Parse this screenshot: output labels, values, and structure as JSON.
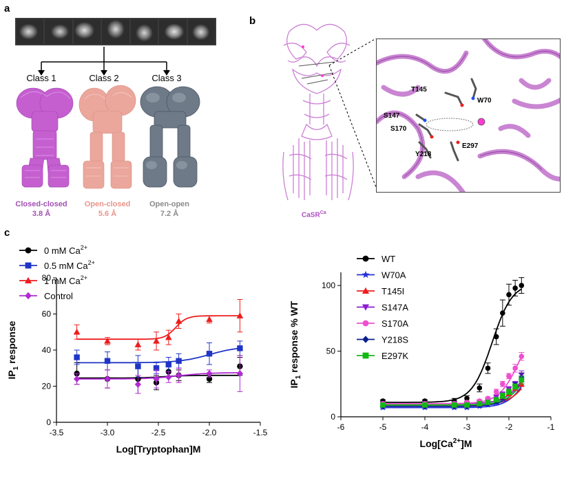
{
  "panel_labels": {
    "a": "a",
    "b": "b",
    "c": "c"
  },
  "panel_a": {
    "classes": [
      {
        "label": "Class 1",
        "state": "Closed-closed",
        "resolution": "3.8 Å",
        "color": "#a24fb4",
        "map_color": "#c55fd0"
      },
      {
        "label": "Class 2",
        "state": "Open-closed",
        "resolution": "5.6 Å",
        "color": "#e8948a",
        "map_color": "#eba79c"
      },
      {
        "label": "Class 3",
        "state": "Open-open",
        "resolution": "7.2 Å",
        "color": "#8a8a8a",
        "map_color": "#6e7a88"
      }
    ]
  },
  "panel_b": {
    "structure_label": "CaSR",
    "structure_label_sup": "Ca",
    "residues": [
      "T145",
      "W70",
      "S147",
      "S170",
      "E297",
      "Y218"
    ]
  },
  "chart_data": [
    {
      "type": "line",
      "xlabel": "Log[Tryptophan]M",
      "ylabel": "IP1 response",
      "xlim": [
        -3.5,
        -1.5
      ],
      "ylim": [
        0,
        80
      ],
      "xticks": [
        "-3.5",
        "-3.0",
        "-2.5",
        "-2.0",
        "-1.5"
      ],
      "yticks": [
        "0",
        "20",
        "40",
        "60",
        "80"
      ],
      "legend_position": "top-left",
      "series": [
        {
          "name": "0 mM Ca",
          "sup": "2+",
          "color": "#000000",
          "marker": "circle",
          "x": [
            -3.3,
            -3.0,
            -2.7,
            -2.52,
            -2.4,
            -2.3,
            -2.0,
            -1.7
          ],
          "y": [
            27,
            24,
            24,
            22,
            28,
            26,
            24,
            31
          ],
          "err": [
            6,
            5,
            8,
            4,
            3,
            3,
            2,
            5
          ],
          "fit": {
            "bottom": 24.5,
            "top": 26,
            "ec50": -2.45,
            "hill": 4
          }
        },
        {
          "name": "0.5 mM Ca",
          "sup": "2+",
          "color": "#1f35c7",
          "marker": "square",
          "x": [
            -3.3,
            -3.0,
            -2.7,
            -2.52,
            -2.4,
            -2.3,
            -2.0,
            -1.7
          ],
          "y": [
            36,
            34,
            31,
            30,
            32,
            34,
            38,
            41
          ],
          "err": [
            4,
            5,
            6,
            3,
            4,
            4,
            6,
            4
          ],
          "fit": {
            "bottom": 33,
            "top": 42,
            "ec50": -2.0,
            "hill": 3
          }
        },
        {
          "name": "1 mM Ca",
          "sup": "2+",
          "color": "#ee1c1c",
          "marker": "triangle",
          "x": [
            -3.3,
            -3.0,
            -2.7,
            -2.52,
            -2.4,
            -2.3,
            -2.0,
            -1.7
          ],
          "y": [
            50,
            45,
            43,
            45,
            47,
            56,
            57,
            59
          ],
          "err": [
            4,
            2,
            3,
            5,
            4,
            4,
            2,
            9
          ],
          "fit": {
            "bottom": 46,
            "top": 59,
            "ec50": -2.33,
            "hill": 8
          }
        },
        {
          "name": "Control",
          "sup": "",
          "color": "#b12bd3",
          "marker": "diamond",
          "x": [
            -3.3,
            -3.0,
            -2.7,
            -2.52,
            -2.4,
            -2.3,
            -2.0,
            -1.7
          ],
          "y": [
            24,
            24,
            21,
            24,
            25,
            26,
            27,
            27
          ],
          "err": [
            3,
            5,
            5,
            5,
            3,
            4,
            2,
            10
          ],
          "fit": {
            "bottom": 24,
            "top": 27.5,
            "ec50": -2.3,
            "hill": 3
          }
        }
      ]
    },
    {
      "type": "line",
      "xlabel": "Log[Ca",
      "xlabel_sup": "2+",
      "xlabel_end": "]M",
      "ylabel": "IP1 response % WT",
      "xlim": [
        -6,
        -1
      ],
      "ylim": [
        0,
        110
      ],
      "xticks": [
        "-6",
        "-5",
        "-4",
        "-3",
        "-2",
        "-1"
      ],
      "yticks": [
        "0",
        "50",
        "100"
      ],
      "legend_position": "top-left",
      "series": [
        {
          "name": "WT",
          "color": "#000000",
          "marker": "circle",
          "x": [
            -5,
            -4,
            -3.3,
            -3,
            -2.7,
            -2.5,
            -2.3,
            -2.15,
            -2.0,
            -1.85,
            -1.7
          ],
          "y": [
            12,
            12,
            12,
            14,
            22,
            37,
            61,
            79,
            93,
            98,
            100
          ],
          "err": [
            1,
            1,
            2,
            2,
            3,
            4,
            6,
            10,
            8,
            6,
            6
          ],
          "fit": {
            "bottom": 11,
            "top": 102,
            "ec50": -2.4,
            "hill": 1.8
          }
        },
        {
          "name": "W70A",
          "color": "#2531d8",
          "marker": "star",
          "x": [
            -5,
            -4,
            -3.3,
            -3,
            -2.7,
            -2.5,
            -2.3,
            -2.15,
            -2.0,
            -1.85,
            -1.7
          ],
          "y": [
            7,
            7,
            7,
            7,
            8,
            9,
            11,
            14,
            18,
            23,
            28
          ],
          "err": [
            1,
            1,
            1,
            1,
            1,
            1,
            2,
            2,
            2,
            2,
            3
          ],
          "fit": {
            "bottom": 7,
            "top": 60,
            "ec50": -1.5,
            "hill": 1.8
          }
        },
        {
          "name": "T145I",
          "color": "#ee1c1c",
          "marker": "triangle",
          "x": [
            -5,
            -4,
            -3.3,
            -3,
            -2.7,
            -2.5,
            -2.3,
            -2.15,
            -2.0,
            -1.85,
            -1.7
          ],
          "y": [
            9,
            9,
            9,
            9,
            10,
            11,
            13,
            15,
            18,
            22,
            25
          ],
          "err": [
            1,
            1,
            1,
            1,
            1,
            1,
            1,
            2,
            2,
            2,
            2
          ],
          "fit": {
            "bottom": 9,
            "top": 50,
            "ec50": -1.5,
            "hill": 1.8
          }
        },
        {
          "name": "S147A",
          "color": "#8b1ed2",
          "marker": "triangle-down",
          "x": [
            -5,
            -4,
            -3.3,
            -3,
            -2.7,
            -2.5,
            -2.3,
            -2.15,
            -2.0,
            -1.85,
            -1.7
          ],
          "y": [
            10,
            10,
            10,
            10,
            11,
            12,
            15,
            17,
            21,
            25,
            32
          ],
          "err": [
            1,
            1,
            1,
            1,
            1,
            1,
            2,
            2,
            2,
            2,
            3
          ],
          "fit": {
            "bottom": 10,
            "top": 60,
            "ec50": -1.55,
            "hill": 1.8
          }
        },
        {
          "name": "S170A",
          "color": "#ee4fd0",
          "marker": "circle",
          "x": [
            -5,
            -4,
            -3.3,
            -3,
            -2.7,
            -2.5,
            -2.3,
            -2.15,
            -2.0,
            -1.85,
            -1.7
          ],
          "y": [
            10,
            10,
            10,
            11,
            12,
            14,
            19,
            25,
            31,
            37,
            46
          ],
          "err": [
            1,
            1,
            1,
            1,
            1,
            1,
            2,
            2,
            2,
            3,
            3
          ],
          "fit": {
            "bottom": 10,
            "top": 75,
            "ec50": -1.75,
            "hill": 1.8
          }
        },
        {
          "name": "Y218S",
          "color": "#0a1e8c",
          "marker": "diamond",
          "x": [
            -5,
            -4,
            -3.3,
            -3,
            -2.7,
            -2.5,
            -2.3,
            -2.15,
            -2.0,
            -1.85,
            -1.7
          ],
          "y": [
            8,
            8,
            8,
            8,
            9,
            10,
            12,
            15,
            19,
            24,
            30
          ],
          "err": [
            1,
            1,
            1,
            1,
            1,
            1,
            2,
            2,
            2,
            2,
            3
          ],
          "fit": {
            "bottom": 8,
            "top": 60,
            "ec50": -1.55,
            "hill": 1.8
          }
        },
        {
          "name": "E297K",
          "color": "#14b814",
          "marker": "square",
          "x": [
            -5,
            -4,
            -3.3,
            -3,
            -2.7,
            -2.5,
            -2.3,
            -2.15,
            -2.0,
            -1.85,
            -1.7
          ],
          "y": [
            9,
            9,
            9,
            9,
            10,
            11,
            13,
            16,
            19,
            23,
            28
          ],
          "err": [
            1,
            1,
            1,
            1,
            1,
            1,
            1,
            2,
            2,
            2,
            3
          ],
          "fit": {
            "bottom": 9,
            "top": 55,
            "ec50": -1.55,
            "hill": 1.8
          }
        }
      ]
    }
  ]
}
